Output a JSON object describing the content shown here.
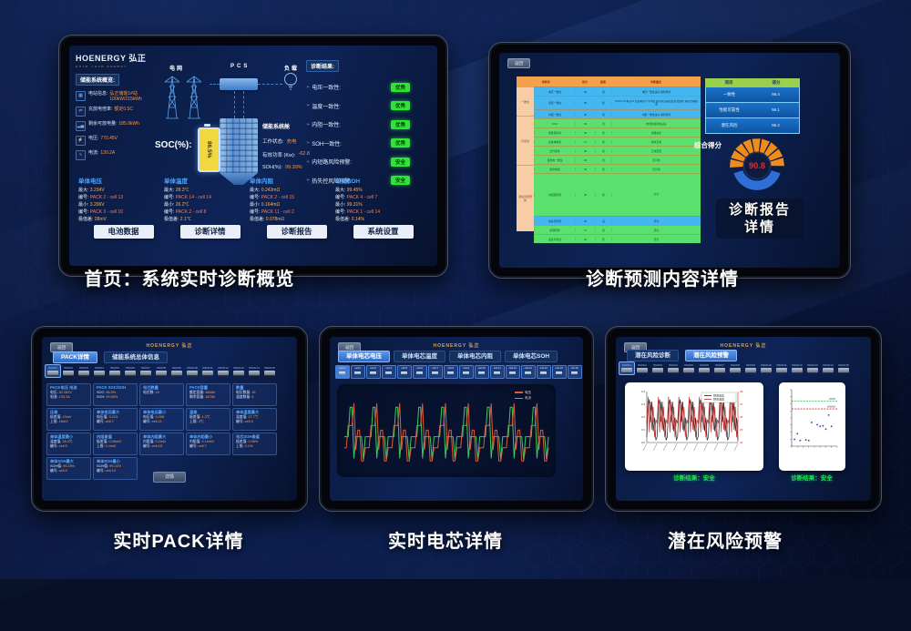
{
  "page": {
    "captions": [
      "首页：系统实时诊断概览",
      "诊断预测内容详情",
      "实时PACK详情",
      "实时电芯详情",
      "潜在风险预警"
    ]
  },
  "colors": {
    "accent_orange": "#ff9340",
    "badge_green": "#2ee535",
    "label_blue": "#4da6ff",
    "table_header_orange": "#f5a04a",
    "table_group_peach": "#f8cda6",
    "table_row_blue": "#45b7f0",
    "table_row_green": "#5ae06e",
    "score_header_green": "#9bcf4e",
    "gauge_value_red": "#e8262b"
  },
  "home": {
    "logo": "HOENERGY 弘正",
    "logo_tagline": "HOLD YOUR ENERGY",
    "overview_title": "储能系统概览:",
    "overview": [
      {
        "icon": "station-icon",
        "label": "电站信息:",
        "value": "弘正储能1#站 100kW/215kWh"
      },
      {
        "icon": "rate-icon",
        "label": "充放电倍率:",
        "value": "额定0.5C"
      },
      {
        "icon": "energy-icon",
        "label": "剩余可放电量:",
        "value": "185.9kWh"
      },
      {
        "icon": "voltage-icon",
        "label": "电压:",
        "value": "770.45V"
      },
      {
        "icon": "current-icon",
        "label": "电流:",
        "value": "130.2A"
      }
    ],
    "flow": {
      "grid": "电网",
      "pcs": "PCS",
      "load": "负载"
    },
    "soc_label": "SOC(%):",
    "soc_value": "86.5%",
    "cabin_title": "储能系统舱",
    "cabin": [
      {
        "label": "工作状态:",
        "value": "充电"
      },
      {
        "label": "有效功率 (Kw):",
        "value": "-62.8"
      },
      {
        "label": "SOH(%):",
        "value": "99.39%"
      }
    ],
    "diag_title": "诊断结果:",
    "diag": [
      {
        "label": "电压一致性:",
        "badge": "优秀"
      },
      {
        "label": "温度一致性:",
        "badge": "优秀"
      },
      {
        "label": "内阻一致性:",
        "badge": "优秀"
      },
      {
        "label": "SOH一致性:",
        "badge": "优秀"
      },
      {
        "label": "内短路风险预警:",
        "badge": "安全"
      },
      {
        "label": "热失控风险预警:",
        "badge": "安全"
      }
    ],
    "stats": [
      {
        "title": "单体电压",
        "rows": [
          [
            "最大:",
            "3.234V"
          ],
          [
            "编号:",
            "PACK 2 - cell 13"
          ],
          [
            "最小:",
            "3.206V"
          ],
          [
            "编号:",
            "PACK 3 - cell 10"
          ],
          [
            "极值差:",
            "28mV"
          ]
        ]
      },
      {
        "title": "单体温度",
        "rows": [
          [
            "最大:",
            "28.3℃"
          ],
          [
            "编号:",
            "PACK 14 - cell 14"
          ],
          [
            "最小:",
            "26.2℃"
          ],
          [
            "编号:",
            "PACK 2 - cell 8"
          ],
          [
            "极值差:",
            "2.1℃"
          ]
        ]
      },
      {
        "title": "单体内阻",
        "rows": [
          [
            "最大:",
            "0.242mΩ"
          ],
          [
            "编号:",
            "PACK 2 - cell 15"
          ],
          [
            "最小:",
            "0.164mΩ"
          ],
          [
            "编号:",
            "PACK 11 - cell 2"
          ],
          [
            "极值差:",
            "0.078mΩ"
          ]
        ]
      },
      {
        "title": "单体SOH",
        "rows": [
          [
            "最大:",
            "99.45%"
          ],
          [
            "编号:",
            "PACK 4 - cell 7"
          ],
          [
            "最小:",
            "99.31%"
          ],
          [
            "编号:",
            "PACK 1 - cell 14"
          ],
          [
            "极值差:",
            "0.14%"
          ]
        ]
      }
    ],
    "nav_buttons": [
      "电池数据",
      "诊断详情",
      "诊断报告",
      "系统设置"
    ]
  },
  "report": {
    "back": "返回",
    "table_headers": [
      "诊断项",
      "得分",
      "结果",
      "诊断建议"
    ],
    "table_rows": [
      {
        "group": "一致性",
        "item": "电压一致性",
        "score": "96",
        "result": "优",
        "note": "电压一致性良好 维持现状",
        "color": "blue",
        "h": 9
      },
      {
        "item": "温度一致性",
        "score": "95",
        "result": "优",
        "note": "PACK 14 电芯14 温度略高于平均值 建议关注其温度变化趋势 避免长期偏差",
        "color": "blue",
        "h": 14
      },
      {
        "item": "内阻一致性",
        "score": "96",
        "result": "优",
        "note": "内阻一致性良好 维持现状",
        "color": "blue",
        "h": 9
      },
      {
        "group": "可靠性",
        "item": "SOH",
        "score": "99",
        "result": "优",
        "note": "电池健康状态良好",
        "color": "green",
        "h": 9
      },
      {
        "item": "容量保持率",
        "score": "98",
        "result": "优",
        "note": "容量充足",
        "color": "green",
        "h": 9
      },
      {
        "item": "充放电效率",
        "score": "97",
        "result": "优",
        "note": "效率正常",
        "color": "green",
        "h": 9
      },
      {
        "item": "温升速率",
        "score": "98",
        "result": "优",
        "note": "正常范围",
        "color": "green",
        "h": 9
      },
      {
        "item": "自放电一致性",
        "score": "98",
        "result": "优",
        "note": "无异常",
        "color": "green",
        "h": 9
      },
      {
        "item": "绝缘电阻",
        "score": "99",
        "result": "优",
        "note": "无异常",
        "color": "green",
        "h": 9
      },
      {
        "group": "潜在风险预警",
        "item": "内短路风险",
        "score": "98",
        "result": "优",
        "note": "安全",
        "color": "green",
        "h": 46
      },
      {
        "item": "热失控风险",
        "score": "96",
        "result": "良",
        "note": "安全",
        "color": "blue",
        "h": 9
      },
      {
        "item": "析锂风险",
        "score": "97",
        "result": "优",
        "note": "安全",
        "color": "green",
        "h": 9
      },
      {
        "item": "连接可靠性",
        "score": "98",
        "result": "优",
        "note": "安全",
        "color": "green",
        "h": 9
      }
    ],
    "score_headers": [
      "项目",
      "得分"
    ],
    "score_rows": [
      [
        "一致性",
        "96.4"
      ],
      [
        "性能可靠性",
        "96.1"
      ],
      [
        "潜在风险",
        "96.2"
      ]
    ],
    "gauge_label": "综合得分",
    "gauge_value": "90.8",
    "cta_line1": "诊断报告",
    "cta_line2": "详情"
  },
  "pack": {
    "back": "返回",
    "logo": "HOENERGY 弘正",
    "tabs": [
      "PACK详情",
      "储能系统总体信息"
    ],
    "active_tab": 0,
    "packs": [
      "PACK1",
      "PACK2",
      "PACK3",
      "PACK4",
      "PACK5",
      "PACK6",
      "PACK7",
      "PACK8",
      "PACK9",
      "PACK10",
      "PACK11",
      "PACK12",
      "PACK13",
      "PACK14",
      "PACK15"
    ],
    "active_pack": 0,
    "cards": [
      {
        "title": "PACK电压 电流",
        "rows": [
          [
            "电压:",
            "52.282V"
          ],
          [
            "电流:",
            "130.2A"
          ]
        ]
      },
      {
        "title": "PACK SOC/SOH",
        "rows": [
          [
            "SOC:",
            "86.5%"
          ],
          [
            "SOH:",
            "99.35%"
          ]
        ]
      },
      {
        "title": "电芯数量",
        "rows": [
          [
            "电芯数:",
            "16"
          ]
        ]
      },
      {
        "title": "PACK容量",
        "rows": [
          [
            "额定容量:",
            "486Ah"
          ],
          [
            "剩余容量:",
            "167Ah"
          ]
        ]
      },
      {
        "title": "数量",
        "rows": [
          [
            "电压数量:",
            "16"
          ],
          [
            "温度数量:",
            "8"
          ]
        ]
      },
      {
        "title": "压差",
        "rows": [
          [
            "极差值:",
            "13mV"
          ],
          [
            "上限:",
            "16mV"
          ]
        ]
      },
      {
        "title": "单体电压最大",
        "rows": [
          [
            "电压值:",
            "3.223"
          ],
          [
            "编号:",
            "cell-7"
          ]
        ]
      },
      {
        "title": "单体电压最小",
        "rows": [
          [
            "电压值:",
            "3.208"
          ],
          [
            "编号:",
            "cell-11"
          ]
        ]
      },
      {
        "title": "温差",
        "rows": [
          [
            "极差值:",
            "1.3℃"
          ],
          [
            "上限:",
            "3℃"
          ]
        ]
      },
      {
        "title": "单体温度最大",
        "rows": [
          [
            "温度值:",
            "27.7℃"
          ],
          [
            "编号:",
            "cell-4"
          ]
        ]
      },
      {
        "title": "单体温度最小",
        "rows": [
          [
            "温度值:",
            "26.4℃"
          ],
          [
            "编号:",
            "cell-9"
          ]
        ]
      },
      {
        "title": "内阻差值",
        "rows": [
          [
            "极差值:",
            "0.06mΩ"
          ],
          [
            "上限:",
            "0.1mΩ"
          ]
        ]
      },
      {
        "title": "单体内阻最大",
        "rows": [
          [
            "内阻值:",
            "0.2mΩ"
          ],
          [
            "编号:",
            "cell-15"
          ]
        ]
      },
      {
        "title": "单体内阻最小",
        "rows": [
          [
            "内阻值:",
            "0.15mΩ"
          ],
          [
            "编号:",
            "cell-7"
          ]
        ]
      },
      {
        "title": "电芯SOH差值",
        "rows": [
          [
            "极差值:",
            "0.08%"
          ],
          [
            "上限:",
            "0.1%"
          ]
        ]
      },
      {
        "title": "单体SOH最大",
        "rows": [
          [
            "SOH值:",
            "99.28%"
          ],
          [
            "编号:",
            "cell-9"
          ]
        ]
      },
      {
        "title": "单体SOH最小",
        "rows": [
          [
            "SOH值:",
            "99.21%"
          ],
          [
            "编号:",
            "cell-14"
          ]
        ]
      }
    ],
    "detail_button": "详情"
  },
  "cell": {
    "back": "返回",
    "logo": "HOENERGY 弘正",
    "tabs": [
      "单体电芯电压",
      "单体电芯温度",
      "单体电芯内阻",
      "单体电芯SOH"
    ],
    "active_tab": 0,
    "cells": [
      "cell-1",
      "cell-2",
      "cell-3",
      "cell-4",
      "cell-5",
      "cell-6",
      "cell-7",
      "cell-8",
      "cell-9",
      "cell-10",
      "cell-11",
      "cell-12",
      "cell-13",
      "cell-14",
      "cell-15",
      "cell-16"
    ],
    "active_cell": 0,
    "chart_data": {
      "type": "line",
      "legend": [
        {
          "name": "电压",
          "color": "#e05a3a"
        },
        {
          "name": "电流",
          "color": "#3cc95f"
        }
      ],
      "cycles": 9,
      "voltage_cycle": [
        0.28,
        0.28,
        0.62,
        0.62,
        0.62,
        0.96,
        0.25,
        0.55,
        0.55,
        0.08,
        0.08,
        0.28
      ],
      "current_cycle": [
        0.45,
        0.45,
        0.45,
        0.9,
        0.9,
        0.12,
        0.45,
        0.45,
        0.45,
        0.45,
        0.1,
        0.45
      ]
    }
  },
  "risk": {
    "back": "返回",
    "logo": "HOENERGY 弘正",
    "tabs": [
      "潜在风险诊断",
      "潜在风险预警"
    ],
    "active_tab": 1,
    "packs": [
      "PACK1",
      "PACK2",
      "PACK3",
      "PACK4",
      "PACK5",
      "PACK6",
      "PACK7",
      "PACK8",
      "PACK9",
      "PACK10",
      "PACK11",
      "PACK12",
      "PACK13",
      "PACK14",
      "PACK15"
    ],
    "active_pack": 0,
    "left_chart": {
      "type": "line",
      "legend": [
        {
          "name": "预测电压",
          "color": "#222222"
        },
        {
          "name": "预测温度",
          "color": "#c23030"
        }
      ],
      "cycles": 9,
      "voltage_cycle": [
        3.05,
        3.32,
        3.38,
        3.18,
        3.36,
        3.1,
        3.22,
        3.02
      ],
      "temp_cycle": [
        25.5,
        27.6,
        24.8,
        27.2,
        25.0,
        26.8,
        24.4,
        25.8
      ],
      "y_left_ticks": [
        "3.4",
        "3.3",
        "3.2",
        "3.1",
        "3.0"
      ],
      "y_right_ticks": [
        "28",
        "27",
        "26",
        "25",
        "24"
      ],
      "ylim_left": [
        3.0,
        3.45
      ],
      "ylim_right": [
        24,
        28
      ]
    },
    "left_result_label": "诊断结果：",
    "left_result": "安全",
    "right_chart": {
      "type": "scatter",
      "points": [
        [
          1,
          0.12
        ],
        [
          2,
          0.22
        ],
        [
          3,
          0.1
        ],
        [
          5,
          0.11
        ],
        [
          6,
          0.1
        ],
        [
          7,
          0.42
        ],
        [
          9,
          0.38
        ],
        [
          10,
          0.35
        ],
        [
          11,
          0.36
        ],
        [
          12,
          0.3
        ],
        [
          13,
          0.55
        ],
        [
          14,
          0.35
        ]
      ],
      "threshold_green": 0.8,
      "threshold_red": 0.66,
      "xlim": [
        0,
        16
      ],
      "ylim": [
        0,
        1
      ]
    },
    "right_result_label": "诊断结果：",
    "right_result": "安全"
  }
}
